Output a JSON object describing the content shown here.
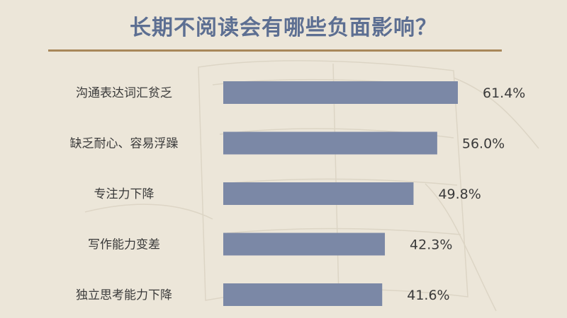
{
  "chart_data": {
    "type": "bar",
    "orientation": "horizontal",
    "title": "长期不阅读会有哪些负面影响？",
    "categories": [
      "沟通表达词汇贫乏",
      "缺乏耐心、容易浮躁",
      "专注力下降",
      "写作能力变差",
      "独立思考能力下降"
    ],
    "values": [
      61.4,
      56.0,
      49.8,
      42.3,
      41.6
    ],
    "value_labels": [
      "61.4%",
      "56.0%",
      "49.8%",
      "42.3%",
      "41.6%"
    ],
    "unit": "%",
    "xlim": [
      0,
      70
    ],
    "grid": false,
    "legend": "none",
    "colors": {
      "bar": "#7b88a6",
      "title": "#5d6f92",
      "rule": "#a8875a",
      "text": "#3a3a3a",
      "background": "#ece6d9"
    }
  }
}
